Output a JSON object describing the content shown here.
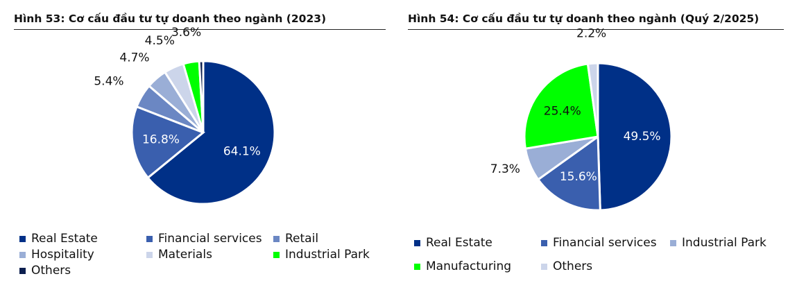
{
  "chart_data": [
    {
      "type": "pie",
      "title": "Hình 53: Cơ cấu đầu tư tự doanh theo ngành (2023)",
      "slices": [
        {
          "label": "Real Estate",
          "value": 64.1,
          "display": "64.1%",
          "color": "#003087"
        },
        {
          "label": "Financial services",
          "value": 16.8,
          "display": "16.8%",
          "color": "#3a5fae"
        },
        {
          "label": "Retail",
          "value": 5.4,
          "display": "5.4%",
          "color": "#6b87c3"
        },
        {
          "label": "Hospitality",
          "value": 4.7,
          "display": "4.7%",
          "color": "#9aaed6"
        },
        {
          "label": "Materials",
          "value": 4.5,
          "display": "4.5%",
          "color": "#ccd5ea"
        },
        {
          "label": "Industrial Park",
          "value": 3.6,
          "display": "3.6%",
          "color": "#00ff00"
        },
        {
          "label": "Others",
          "value": 0.9,
          "display": "",
          "color": "#0c1f4f"
        }
      ],
      "legend": "bottom"
    },
    {
      "type": "pie",
      "title": "Hình 54: Cơ cấu đầu tư tự doanh theo ngành (Quý 2/2025)",
      "slices": [
        {
          "label": "Real Estate",
          "value": 49.5,
          "display": "49.5%",
          "color": "#003087"
        },
        {
          "label": "Financial services",
          "value": 15.6,
          "display": "15.6%",
          "color": "#3a5fae"
        },
        {
          "label": "Industrial Park",
          "value": 7.3,
          "display": "7.3%",
          "color": "#9aaed6"
        },
        {
          "label": "Manufacturing",
          "value": 25.4,
          "display": "25.4%",
          "color": "#00ff00"
        },
        {
          "label": "Others",
          "value": 2.2,
          "display": "2.2%",
          "color": "#ccd5ea"
        }
      ],
      "legend": "bottom"
    }
  ]
}
